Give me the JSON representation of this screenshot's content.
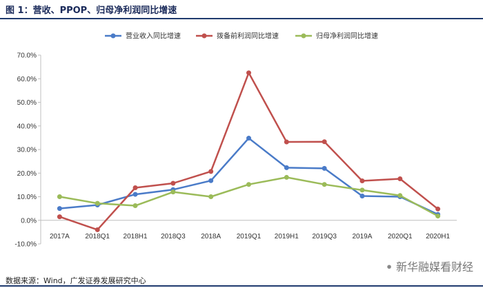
{
  "figure": {
    "title": "图 1：营收、PPOP、归母净利润同比增速",
    "source": "数据来源：Wind，广发证券发展研究中心",
    "watermark": "新华融媒看财经"
  },
  "chart_data": {
    "type": "line",
    "categories": [
      "2017A",
      "2018Q1",
      "2018H1",
      "2018Q3",
      "2018A",
      "2019Q1",
      "2019H1",
      "2019Q3",
      "2019A",
      "2020Q1",
      "2020H1"
    ],
    "series": [
      {
        "name": "营业收入同比增速",
        "color": "#4a7bc8",
        "values": [
          5.0,
          6.5,
          11.0,
          13.0,
          16.8,
          34.8,
          22.3,
          22.0,
          10.3,
          10.0,
          2.5
        ]
      },
      {
        "name": "拨备前利润同比增速",
        "color": "#c0504d",
        "values": [
          1.5,
          -4.0,
          13.8,
          15.7,
          20.7,
          62.5,
          33.2,
          33.3,
          16.7,
          17.6,
          4.8
        ]
      },
      {
        "name": "归母净利润同比增速",
        "color": "#9bbb59",
        "values": [
          10.0,
          7.2,
          6.2,
          12.0,
          10.0,
          15.2,
          18.2,
          15.2,
          12.8,
          10.5,
          1.8
        ]
      }
    ],
    "ylim": [
      -10,
      70
    ],
    "yticks": [
      -10,
      0,
      10,
      20,
      30,
      40,
      50,
      60,
      70
    ],
    "ytick_labels": [
      "-10.0%",
      "0.0%",
      "10.0%",
      "20.0%",
      "30.0%",
      "40.0%",
      "50.0%",
      "60.0%",
      "70.0%"
    ],
    "grid": false,
    "legend_position": "top"
  }
}
